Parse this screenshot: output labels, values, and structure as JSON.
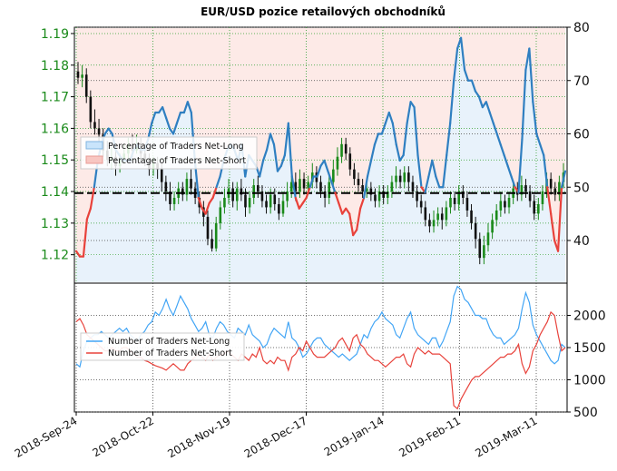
{
  "chart_data": {
    "type": "line",
    "title": "EUR/USD pozice retailových obchodníků",
    "x_labels": [
      "2018-Sep-24",
      "2018-Oct-22",
      "2018-Nov-19",
      "2018-Dec-17",
      "2019-Jan-14",
      "2019-Feb-11",
      "2019-Mar-11"
    ],
    "price_axis": {
      "ticks": [
        "1.19",
        "1.18",
        "1.17",
        "1.16",
        "1.15",
        "1.14",
        "1.13",
        "1.12"
      ],
      "ylim": [
        1.111,
        1.192
      ]
    },
    "pct_axis": {
      "ticks": [
        "80",
        "70",
        "60",
        "50",
        "40"
      ],
      "ylim": [
        32,
        80
      ]
    },
    "count_axis": {
      "ticks": [
        "2000",
        "1500",
        "1000",
        "500"
      ],
      "ylim": [
        500,
        2500
      ]
    },
    "reference_line": {
      "price": 1.1395
    },
    "upper_legend": [
      "Percentage of Traders Net-Long",
      "Percentage of Traders Net-Short"
    ],
    "lower_legend": [
      "Number of Traders Net-Long",
      "Number of Traders Net-Short"
    ],
    "colors": {
      "long": "#2f7fc1",
      "short": "#e8423b",
      "long_light": "#42a5f5",
      "price_axis": "#1a8a1a",
      "grid": "#2e9e2e"
    },
    "series": [
      {
        "name": "Percentage of Traders Net-Long",
        "values": [
          38,
          37,
          37,
          44,
          46,
          50,
          55,
          58,
          60,
          61,
          60,
          57,
          56,
          55,
          55,
          55,
          57,
          58,
          57,
          57,
          59,
          62,
          64,
          64,
          65,
          63,
          61,
          60,
          62,
          64,
          64,
          66,
          64,
          55,
          48,
          46,
          45,
          47,
          48,
          50,
          52,
          55,
          57,
          58,
          57,
          55,
          58,
          52,
          56,
          55,
          54,
          52,
          55,
          57,
          60,
          58,
          53,
          54,
          56,
          62,
          52,
          48,
          46,
          47,
          48,
          50,
          52,
          52,
          54,
          55,
          53,
          51,
          49,
          47,
          45,
          46,
          45,
          41,
          42,
          46,
          48,
          52,
          55,
          58,
          60,
          60,
          62,
          64,
          62,
          58,
          55,
          56,
          62,
          66,
          65,
          56,
          50,
          49,
          52,
          55,
          52,
          50,
          50,
          56,
          62,
          70,
          76,
          78,
          72,
          70,
          70,
          68,
          67,
          65,
          66,
          64,
          62,
          60,
          58,
          56,
          54,
          52,
          50,
          49,
          59,
          72,
          76,
          66,
          60,
          58,
          56,
          50,
          45,
          40,
          38,
          50,
          53
        ]
      },
      {
        "name": "Number of Traders Net-Long",
        "values": [
          1250,
          1200,
          1450,
          1600,
          1650,
          1700,
          1700,
          1750,
          1700,
          1650,
          1700,
          1750,
          1800,
          1750,
          1800,
          1700,
          1650,
          1600,
          1700,
          1750,
          1850,
          1900,
          2050,
          2000,
          2100,
          2250,
          2100,
          2000,
          2150,
          2300,
          2200,
          2100,
          1950,
          1850,
          1750,
          1800,
          1900,
          1700,
          1650,
          1800,
          1900,
          1850,
          1750,
          1700,
          1650,
          1800,
          1750,
          1700,
          1850,
          1700,
          1650,
          1600,
          1500,
          1550,
          1700,
          1800,
          1750,
          1700,
          1650,
          1900,
          1650,
          1600,
          1500,
          1350,
          1400,
          1500,
          1600,
          1650,
          1650,
          1550,
          1500,
          1450,
          1400,
          1350,
          1400,
          1350,
          1300,
          1350,
          1400,
          1550,
          1700,
          1650,
          1800,
          1900,
          1950,
          2050,
          1950,
          1900,
          1850,
          1700,
          1650,
          1800,
          1950,
          2050,
          1800,
          1700,
          1650,
          1600,
          1550,
          1650,
          1650,
          1500,
          1600,
          1750,
          1900,
          2300,
          2450,
          2400,
          2250,
          2200,
          2100,
          2000,
          2000,
          1950,
          1950,
          1800,
          1700,
          1650,
          1650,
          1550,
          1600,
          1650,
          1700,
          1800,
          2100,
          2350,
          2200,
          1850,
          1700,
          1600,
          1500,
          1400,
          1300,
          1250,
          1300,
          1550,
          1500
        ]
      },
      {
        "name": "Number of Traders Net-Short",
        "values": [
          1900,
          1950,
          1850,
          1700,
          1650,
          1600,
          1550,
          1500,
          1450,
          1450,
          1500,
          1450,
          1450,
          1500,
          1500,
          1450,
          1400,
          1350,
          1350,
          1300,
          1280,
          1250,
          1220,
          1200,
          1180,
          1150,
          1200,
          1250,
          1200,
          1150,
          1150,
          1250,
          1300,
          1350,
          1400,
          1350,
          1300,
          1400,
          1300,
          1350,
          1380,
          1400,
          1450,
          1400,
          1350,
          1300,
          1400,
          1350,
          1300,
          1400,
          1350,
          1500,
          1300,
          1250,
          1300,
          1250,
          1350,
          1300,
          1300,
          1150,
          1350,
          1400,
          1500,
          1450,
          1600,
          1500,
          1400,
          1350,
          1350,
          1350,
          1400,
          1450,
          1500,
          1600,
          1650,
          1550,
          1450,
          1650,
          1700,
          1550,
          1500,
          1400,
          1350,
          1300,
          1300,
          1250,
          1200,
          1250,
          1300,
          1350,
          1350,
          1400,
          1250,
          1200,
          1400,
          1500,
          1450,
          1400,
          1450,
          1400,
          1400,
          1400,
          1350,
          1300,
          1250,
          600,
          550,
          700,
          800,
          900,
          1000,
          1050,
          1050,
          1100,
          1150,
          1200,
          1250,
          1300,
          1350,
          1350,
          1400,
          1400,
          1450,
          1550,
          1250,
          1100,
          1200,
          1450,
          1550,
          1700,
          1800,
          1900,
          2050,
          2000,
          1700,
          1450,
          1500
        ]
      }
    ],
    "price_candles": [
      [
        1.178,
        1.176,
        1.181,
        1.174
      ],
      [
        1.176,
        1.177,
        1.18,
        1.173
      ],
      [
        1.177,
        1.17,
        1.179,
        1.168
      ],
      [
        1.17,
        1.162,
        1.172,
        1.16
      ],
      [
        1.162,
        1.16,
        1.166,
        1.158
      ],
      [
        1.16,
        1.158,
        1.163,
        1.155
      ],
      [
        1.158,
        1.153,
        1.16,
        1.151
      ],
      [
        1.153,
        1.15,
        1.156,
        1.148
      ],
      [
        1.15,
        1.151,
        1.154,
        1.147
      ],
      [
        1.151,
        1.148,
        1.153,
        1.145
      ],
      [
        1.148,
        1.15,
        1.152,
        1.146
      ],
      [
        1.15,
        1.152,
        1.155,
        1.149
      ],
      [
        1.152,
        1.155,
        1.157,
        1.15
      ],
      [
        1.155,
        1.153,
        1.158,
        1.151
      ],
      [
        1.153,
        1.155,
        1.158,
        1.152
      ],
      [
        1.155,
        1.152,
        1.157,
        1.149
      ],
      [
        1.152,
        1.15,
        1.155,
        1.148
      ],
      [
        1.15,
        1.147,
        1.152,
        1.145
      ],
      [
        1.147,
        1.149,
        1.151,
        1.145
      ],
      [
        1.149,
        1.147,
        1.151,
        1.144
      ],
      [
        1.147,
        1.143,
        1.149,
        1.14
      ],
      [
        1.143,
        1.14,
        1.145,
        1.137
      ],
      [
        1.14,
        1.136,
        1.143,
        1.134
      ],
      [
        1.136,
        1.138,
        1.14,
        1.134
      ],
      [
        1.138,
        1.141,
        1.143,
        1.136
      ],
      [
        1.141,
        1.139,
        1.143,
        1.137
      ],
      [
        1.139,
        1.144,
        1.146,
        1.137
      ],
      [
        1.144,
        1.141,
        1.147,
        1.139
      ],
      [
        1.141,
        1.138,
        1.143,
        1.136
      ],
      [
        1.138,
        1.135,
        1.14,
        1.133
      ],
      [
        1.135,
        1.132,
        1.137,
        1.129
      ],
      [
        1.132,
        1.125,
        1.134,
        1.123
      ],
      [
        1.125,
        1.122,
        1.128,
        1.121
      ],
      [
        1.122,
        1.13,
        1.132,
        1.121
      ],
      [
        1.13,
        1.135,
        1.137,
        1.128
      ],
      [
        1.135,
        1.138,
        1.141,
        1.133
      ],
      [
        1.138,
        1.141,
        1.144,
        1.136
      ],
      [
        1.141,
        1.137,
        1.143,
        1.135
      ],
      [
        1.137,
        1.141,
        1.143,
        1.134
      ],
      [
        1.141,
        1.139,
        1.144,
        1.137
      ],
      [
        1.139,
        1.135,
        1.141,
        1.132
      ],
      [
        1.135,
        1.138,
        1.14,
        1.133
      ],
      [
        1.138,
        1.142,
        1.144,
        1.136
      ],
      [
        1.142,
        1.14,
        1.145,
        1.138
      ],
      [
        1.14,
        1.137,
        1.142,
        1.135
      ],
      [
        1.137,
        1.135,
        1.139,
        1.133
      ],
      [
        1.135,
        1.139,
        1.141,
        1.133
      ],
      [
        1.139,
        1.136,
        1.141,
        1.134
      ],
      [
        1.136,
        1.133,
        1.138,
        1.131
      ],
      [
        1.133,
        1.137,
        1.14,
        1.132
      ],
      [
        1.137,
        1.14,
        1.143,
        1.135
      ],
      [
        1.14,
        1.143,
        1.145,
        1.138
      ],
      [
        1.143,
        1.14,
        1.146,
        1.137
      ],
      [
        1.14,
        1.144,
        1.147,
        1.138
      ],
      [
        1.144,
        1.141,
        1.146,
        1.139
      ],
      [
        1.141,
        1.143,
        1.145,
        1.139
      ],
      [
        1.143,
        1.146,
        1.149,
        1.141
      ],
      [
        1.146,
        1.143,
        1.148,
        1.141
      ],
      [
        1.143,
        1.14,
        1.145,
        1.138
      ],
      [
        1.14,
        1.138,
        1.142,
        1.135
      ],
      [
        1.138,
        1.143,
        1.146,
        1.136
      ],
      [
        1.143,
        1.147,
        1.15,
        1.141
      ],
      [
        1.147,
        1.151,
        1.154,
        1.145
      ],
      [
        1.151,
        1.155,
        1.157,
        1.149
      ],
      [
        1.155,
        1.152,
        1.157,
        1.15
      ],
      [
        1.152,
        1.147,
        1.154,
        1.145
      ],
      [
        1.147,
        1.144,
        1.149,
        1.142
      ],
      [
        1.144,
        1.142,
        1.146,
        1.14
      ],
      [
        1.142,
        1.14,
        1.144,
        1.138
      ],
      [
        1.14,
        1.141,
        1.143,
        1.138
      ],
      [
        1.141,
        1.139,
        1.143,
        1.137
      ],
      [
        1.139,
        1.137,
        1.141,
        1.135
      ],
      [
        1.137,
        1.14,
        1.142,
        1.135
      ],
      [
        1.14,
        1.138,
        1.142,
        1.136
      ],
      [
        1.138,
        1.14,
        1.142,
        1.136
      ],
      [
        1.14,
        1.143,
        1.145,
        1.138
      ],
      [
        1.143,
        1.145,
        1.148,
        1.141
      ],
      [
        1.145,
        1.143,
        1.147,
        1.141
      ],
      [
        1.143,
        1.146,
        1.148,
        1.141
      ],
      [
        1.146,
        1.143,
        1.148,
        1.14
      ],
      [
        1.143,
        1.14,
        1.145,
        1.138
      ],
      [
        1.14,
        1.137,
        1.142,
        1.135
      ],
      [
        1.137,
        1.135,
        1.139,
        1.133
      ],
      [
        1.135,
        1.131,
        1.137,
        1.129
      ],
      [
        1.131,
        1.129,
        1.133,
        1.127
      ],
      [
        1.129,
        1.131,
        1.134,
        1.127
      ],
      [
        1.131,
        1.133,
        1.135,
        1.129
      ],
      [
        1.133,
        1.131,
        1.135,
        1.128
      ],
      [
        1.131,
        1.135,
        1.137,
        1.129
      ],
      [
        1.135,
        1.138,
        1.14,
        1.133
      ],
      [
        1.138,
        1.136,
        1.14,
        1.134
      ],
      [
        1.136,
        1.14,
        1.142,
        1.134
      ],
      [
        1.14,
        1.138,
        1.142,
        1.136
      ],
      [
        1.138,
        1.134,
        1.14,
        1.132
      ],
      [
        1.134,
        1.13,
        1.136,
        1.128
      ],
      [
        1.13,
        1.125,
        1.132,
        1.122
      ],
      [
        1.125,
        1.119,
        1.127,
        1.117
      ],
      [
        1.119,
        1.123,
        1.126,
        1.117
      ],
      [
        1.123,
        1.127,
        1.13,
        1.121
      ],
      [
        1.127,
        1.131,
        1.133,
        1.125
      ],
      [
        1.131,
        1.134,
        1.136,
        1.129
      ],
      [
        1.134,
        1.137,
        1.14,
        1.132
      ],
      [
        1.137,
        1.135,
        1.139,
        1.133
      ],
      [
        1.135,
        1.138,
        1.14,
        1.133
      ],
      [
        1.138,
        1.141,
        1.143,
        1.136
      ],
      [
        1.141,
        1.139,
        1.143,
        1.137
      ],
      [
        1.139,
        1.142,
        1.145,
        1.137
      ],
      [
        1.142,
        1.14,
        1.144,
        1.138
      ],
      [
        1.14,
        1.137,
        1.142,
        1.135
      ],
      [
        1.137,
        1.133,
        1.139,
        1.131
      ],
      [
        1.133,
        1.136,
        1.138,
        1.131
      ],
      [
        1.136,
        1.14,
        1.142,
        1.134
      ],
      [
        1.14,
        1.144,
        1.146,
        1.138
      ],
      [
        1.144,
        1.141,
        1.146,
        1.139
      ],
      [
        1.141,
        1.139,
        1.143,
        1.137
      ],
      [
        1.139,
        1.143,
        1.145,
        1.137
      ],
      [
        1.143,
        1.146,
        1.149,
        1.141
      ]
    ]
  }
}
